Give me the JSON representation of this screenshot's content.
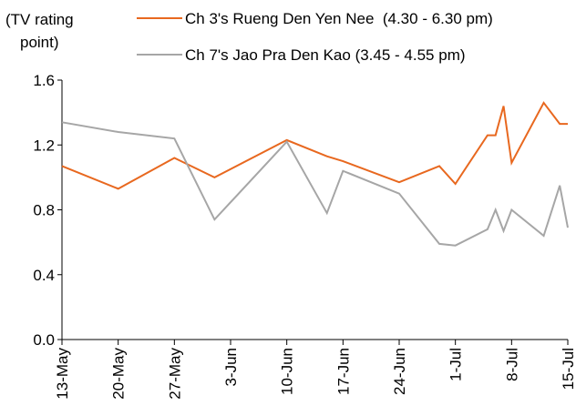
{
  "chart_data": {
    "type": "line",
    "y_label": [
      "(TV rating",
      "point)"
    ],
    "x": [
      "13-May",
      "20-May",
      "27-May",
      "1-Jun",
      "10-Jun",
      "15-Jun",
      "17-Jun",
      "24-Jun",
      "29-Jun",
      "1-Jul",
      "5-Jul",
      "6-Jul",
      "7-Jul",
      "8-Jul",
      "12-Jul",
      "14-Jul",
      "15-Jul"
    ],
    "series": [
      {
        "name": "Ch 3's Rueng Den Yen Nee  (4.30 - 6.30 pm)",
        "color": "#e8681f",
        "values": [
          1.07,
          0.93,
          1.12,
          1.0,
          1.23,
          1.13,
          1.1,
          0.97,
          1.07,
          0.96,
          1.26,
          1.26,
          1.44,
          1.09,
          1.46,
          1.33,
          1.33
        ]
      },
      {
        "name": "Ch 7's Jao Pra Den Kao (3.45 - 4.55 pm)",
        "color": "#a6a6a6",
        "values": [
          1.34,
          1.28,
          1.24,
          0.74,
          1.22,
          0.78,
          1.04,
          0.9,
          0.59,
          0.58,
          0.68,
          0.8,
          0.67,
          0.8,
          0.64,
          0.95,
          0.69
        ]
      }
    ],
    "xlim": [
      "13-May",
      "15-Jul"
    ],
    "xticks": [
      "13-May",
      "20-May",
      "27-May",
      "3-Jun",
      "10-Jun",
      "17-Jun",
      "24-Jun",
      "1-Jul",
      "8-Jul",
      "15-Jul"
    ],
    "ylim": [
      0,
      1.6
    ],
    "yticks": [
      {
        "value": 0,
        "label": "0.0"
      },
      0.4,
      0.8,
      1.2,
      1.6
    ],
    "grid": false
  }
}
